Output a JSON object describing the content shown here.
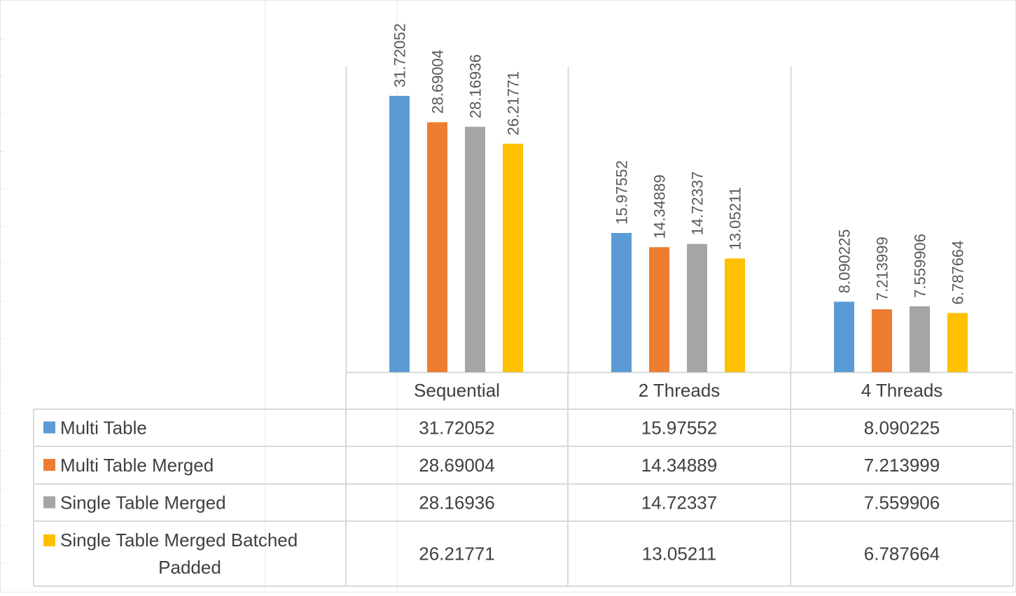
{
  "chart_data": {
    "type": "bar",
    "categories": [
      "Sequential",
      "2 Threads",
      "4 Threads"
    ],
    "series": [
      {
        "name": "Multi Table",
        "color": "#5B9BD5",
        "values": [
          31.72052,
          15.97552,
          8.090225
        ],
        "labels": [
          "31.72052",
          "15.97552",
          "8.090225"
        ]
      },
      {
        "name": "Multi Table Merged",
        "color": "#ED7D31",
        "values": [
          28.69004,
          14.34889,
          7.213999
        ],
        "labels": [
          "28.69004",
          "14.34889",
          "7.213999"
        ]
      },
      {
        "name": "Single Table Merged",
        "color": "#A5A5A5",
        "values": [
          28.16936,
          14.72337,
          7.559906
        ],
        "labels": [
          "28.16936",
          "14.72337",
          "7.559906"
        ]
      },
      {
        "name": "Single Table Merged Batched Padded",
        "color": "#FFC000",
        "values": [
          26.21771,
          13.05211,
          6.787664
        ],
        "labels": [
          "26.21771",
          "13.05211",
          "6.787664"
        ]
      }
    ],
    "ylim": [
      0,
      35
    ],
    "title": "",
    "xlabel": "",
    "ylabel": "",
    "grid": false,
    "legend": "data-table",
    "colors": {
      "gridline": "#D9D9D9",
      "sheet_grid": "#E6E6E6",
      "text": "#595959",
      "table_text": "#404040"
    }
  }
}
